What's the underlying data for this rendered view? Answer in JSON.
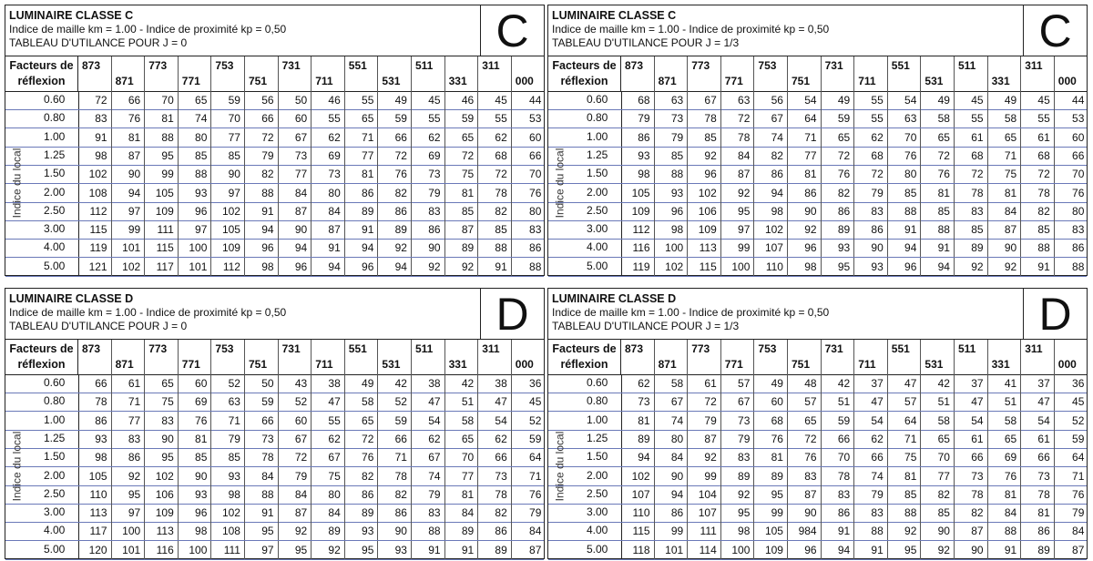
{
  "header_label": [
    "Facteurs de",
    "réflexion"
  ],
  "side_label": "Indice du local",
  "columns": [
    "873",
    "871",
    "773",
    "771",
    "753",
    "751",
    "731",
    "711",
    "551",
    "531",
    "511",
    "331",
    "311",
    "000"
  ],
  "row_indices": [
    "0.60",
    "0.80",
    "1.00",
    "1.25",
    "1.50",
    "2.00",
    "2.50",
    "3.00",
    "4.00",
    "5.00"
  ],
  "tables": [
    {
      "title": "LUMINAIRE CLASSE C",
      "subtitle": "Indice de maille km = 1.00 - Indice de proximité kp = 0,50",
      "j_label": "TABLEAU D'UTILANCE POUR J = 0",
      "letter": "C",
      "rows": [
        [
          "72",
          "66",
          "70",
          "65",
          "59",
          "56",
          "50",
          "46",
          "55",
          "49",
          "45",
          "46",
          "45",
          "44"
        ],
        [
          "83",
          "76",
          "81",
          "74",
          "70",
          "66",
          "60",
          "55",
          "65",
          "59",
          "55",
          "59",
          "55",
          "53"
        ],
        [
          "91",
          "81",
          "88",
          "80",
          "77",
          "72",
          "67",
          "62",
          "71",
          "66",
          "62",
          "65",
          "62",
          "60"
        ],
        [
          "98",
          "87",
          "95",
          "85",
          "85",
          "79",
          "73",
          "69",
          "77",
          "72",
          "69",
          "72",
          "68",
          "66"
        ],
        [
          "102",
          "90",
          "99",
          "88",
          "90",
          "82",
          "77",
          "73",
          "81",
          "76",
          "73",
          "75",
          "72",
          "70"
        ],
        [
          "108",
          "94",
          "105",
          "93",
          "97",
          "88",
          "84",
          "80",
          "86",
          "82",
          "79",
          "81",
          "78",
          "76"
        ],
        [
          "112",
          "97",
          "109",
          "96",
          "102",
          "91",
          "87",
          "84",
          "89",
          "86",
          "83",
          "85",
          "82",
          "80"
        ],
        [
          "115",
          "99",
          "111",
          "97",
          "105",
          "94",
          "90",
          "87",
          "91",
          "89",
          "86",
          "87",
          "85",
          "83"
        ],
        [
          "119",
          "101",
          "115",
          "100",
          "109",
          "96",
          "94",
          "91",
          "94",
          "92",
          "90",
          "89",
          "88",
          "86"
        ],
        [
          "121",
          "102",
          "117",
          "101",
          "112",
          "98",
          "96",
          "94",
          "96",
          "94",
          "92",
          "92",
          "91",
          "88"
        ]
      ]
    },
    {
      "title": "LUMINAIRE CLASSE C",
      "subtitle": "Indice de maille km = 1.00 - Indice de proximité kp = 0,50",
      "j_label": "TABLEAU D'UTILANCE POUR J = 1/3",
      "letter": "C",
      "rows": [
        [
          "68",
          "63",
          "67",
          "63",
          "56",
          "54",
          "49",
          "55",
          "54",
          "49",
          "45",
          "49",
          "45",
          "44"
        ],
        [
          "79",
          "73",
          "78",
          "72",
          "67",
          "64",
          "59",
          "55",
          "63",
          "58",
          "55",
          "58",
          "55",
          "53"
        ],
        [
          "86",
          "79",
          "85",
          "78",
          "74",
          "71",
          "65",
          "62",
          "70",
          "65",
          "61",
          "65",
          "61",
          "60"
        ],
        [
          "93",
          "85",
          "92",
          "84",
          "82",
          "77",
          "72",
          "68",
          "76",
          "72",
          "68",
          "71",
          "68",
          "66"
        ],
        [
          "98",
          "88",
          "96",
          "87",
          "86",
          "81",
          "76",
          "72",
          "80",
          "76",
          "72",
          "75",
          "72",
          "70"
        ],
        [
          "105",
          "93",
          "102",
          "92",
          "94",
          "86",
          "82",
          "79",
          "85",
          "81",
          "78",
          "81",
          "78",
          "76"
        ],
        [
          "109",
          "96",
          "106",
          "95",
          "98",
          "90",
          "86",
          "83",
          "88",
          "85",
          "83",
          "84",
          "82",
          "80"
        ],
        [
          "112",
          "98",
          "109",
          "97",
          "102",
          "92",
          "89",
          "86",
          "91",
          "88",
          "85",
          "87",
          "85",
          "83"
        ],
        [
          "116",
          "100",
          "113",
          "99",
          "107",
          "96",
          "93",
          "90",
          "94",
          "91",
          "89",
          "90",
          "88",
          "86"
        ],
        [
          "119",
          "102",
          "115",
          "100",
          "110",
          "98",
          "95",
          "93",
          "96",
          "94",
          "92",
          "92",
          "91",
          "88"
        ]
      ]
    },
    {
      "title": "LUMINAIRE CLASSE D",
      "subtitle": "Indice de maille km = 1.00 - Indice de proximité kp = 0,50",
      "j_label": "TABLEAU D'UTILANCE POUR J = 0",
      "letter": "D",
      "rows": [
        [
          "66",
          "61",
          "65",
          "60",
          "52",
          "50",
          "43",
          "38",
          "49",
          "42",
          "38",
          "42",
          "38",
          "36"
        ],
        [
          "78",
          "71",
          "75",
          "69",
          "63",
          "59",
          "52",
          "47",
          "58",
          "52",
          "47",
          "51",
          "47",
          "45"
        ],
        [
          "86",
          "77",
          "83",
          "76",
          "71",
          "66",
          "60",
          "55",
          "65",
          "59",
          "54",
          "58",
          "54",
          "52"
        ],
        [
          "93",
          "83",
          "90",
          "81",
          "79",
          "73",
          "67",
          "62",
          "72",
          "66",
          "62",
          "65",
          "62",
          "59"
        ],
        [
          "98",
          "86",
          "95",
          "85",
          "85",
          "78",
          "72",
          "67",
          "76",
          "71",
          "67",
          "70",
          "66",
          "64"
        ],
        [
          "105",
          "92",
          "102",
          "90",
          "93",
          "84",
          "79",
          "75",
          "82",
          "78",
          "74",
          "77",
          "73",
          "71"
        ],
        [
          "110",
          "95",
          "106",
          "93",
          "98",
          "88",
          "84",
          "80",
          "86",
          "82",
          "79",
          "81",
          "78",
          "76"
        ],
        [
          "113",
          "97",
          "109",
          "96",
          "102",
          "91",
          "87",
          "84",
          "89",
          "86",
          "83",
          "84",
          "82",
          "79"
        ],
        [
          "117",
          "100",
          "113",
          "98",
          "108",
          "95",
          "92",
          "89",
          "93",
          "90",
          "88",
          "89",
          "86",
          "84"
        ],
        [
          "120",
          "101",
          "116",
          "100",
          "111",
          "97",
          "95",
          "92",
          "95",
          "93",
          "91",
          "91",
          "89",
          "87"
        ]
      ]
    },
    {
      "title": "LUMINAIRE CLASSE D",
      "subtitle": "Indice de maille km = 1.00 - Indice de proximité kp = 0,50",
      "j_label": "TABLEAU D'UTILANCE POUR J = 1/3",
      "letter": "D",
      "rows": [
        [
          "62",
          "58",
          "61",
          "57",
          "49",
          "48",
          "42",
          "37",
          "47",
          "42",
          "37",
          "41",
          "37",
          "36"
        ],
        [
          "73",
          "67",
          "72",
          "67",
          "60",
          "57",
          "51",
          "47",
          "57",
          "51",
          "47",
          "51",
          "47",
          "45"
        ],
        [
          "81",
          "74",
          "79",
          "73",
          "68",
          "65",
          "59",
          "54",
          "64",
          "58",
          "54",
          "58",
          "54",
          "52"
        ],
        [
          "89",
          "80",
          "87",
          "79",
          "76",
          "72",
          "66",
          "62",
          "71",
          "65",
          "61",
          "65",
          "61",
          "59"
        ],
        [
          "94",
          "84",
          "92",
          "83",
          "81",
          "76",
          "70",
          "66",
          "75",
          "70",
          "66",
          "69",
          "66",
          "64"
        ],
        [
          "102",
          "90",
          "99",
          "89",
          "89",
          "83",
          "78",
          "74",
          "81",
          "77",
          "73",
          "76",
          "73",
          "71"
        ],
        [
          "107",
          "94",
          "104",
          "92",
          "95",
          "87",
          "83",
          "79",
          "85",
          "82",
          "78",
          "81",
          "78",
          "76"
        ],
        [
          "110",
          "86",
          "107",
          "95",
          "99",
          "90",
          "86",
          "83",
          "88",
          "85",
          "82",
          "84",
          "81",
          "79"
        ],
        [
          "115",
          "99",
          "111",
          "98",
          "105",
          "984",
          "91",
          "88",
          "92",
          "90",
          "87",
          "88",
          "86",
          "84"
        ],
        [
          "118",
          "101",
          "114",
          "100",
          "109",
          "96",
          "94",
          "91",
          "95",
          "92",
          "90",
          "91",
          "89",
          "87"
        ]
      ]
    }
  ]
}
